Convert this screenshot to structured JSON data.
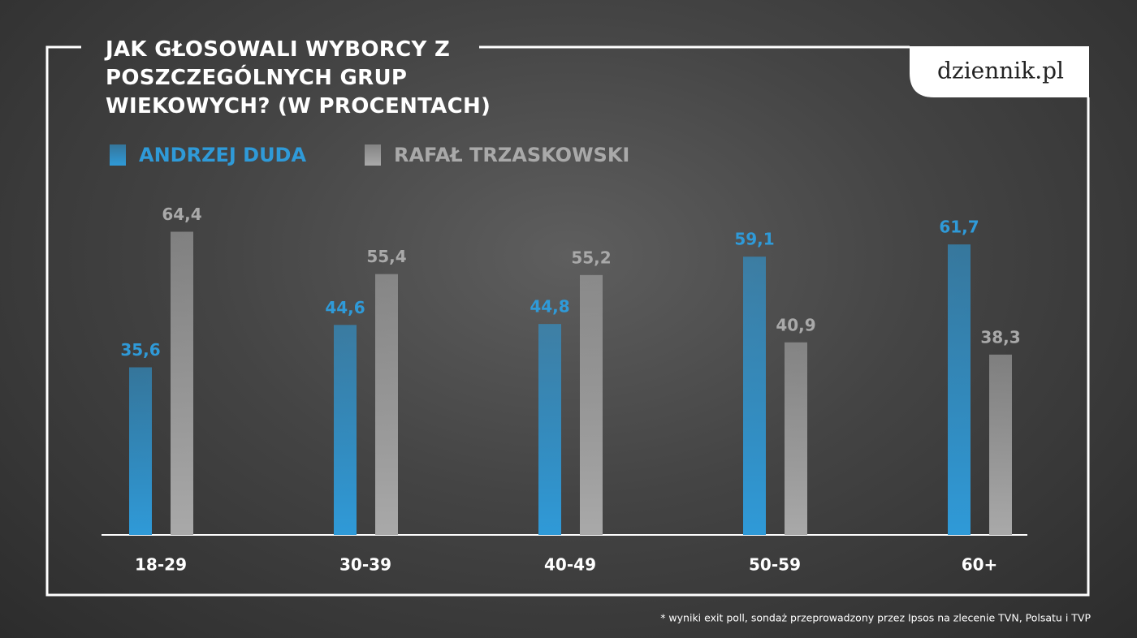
{
  "chart_data": {
    "type": "bar",
    "title": "JAK GŁOSOWALI WYBORCY Z POSZCZEGÓLNYCH GRUP WIEKOWYCH? (W PROCENTACH)",
    "logo": "dziennik.pl",
    "footnote": "* wyniki exit poll, sondaż przeprowadzony przez Ipsos na zlecenie TVN, Polsatu i TVP",
    "categories": [
      "18-29",
      "30-39",
      "40-49",
      "50-59",
      "60+"
    ],
    "series": [
      {
        "name": "ANDRZEJ DUDA",
        "color": "#2f9ad8",
        "values": [
          35.6,
          44.6,
          44.8,
          59.1,
          61.7
        ],
        "value_labels": [
          "35,6",
          "44,6",
          "44,8",
          "59,1",
          "61,7"
        ]
      },
      {
        "name": "RAFAŁ TRZASKOWSKI",
        "color": "#a9a9a9",
        "values": [
          64.4,
          55.4,
          55.2,
          40.9,
          38.3
        ],
        "value_labels": [
          "64,4",
          "55,4",
          "55,2",
          "40,9",
          "38,3"
        ]
      }
    ],
    "ylim": [
      0,
      70
    ]
  }
}
